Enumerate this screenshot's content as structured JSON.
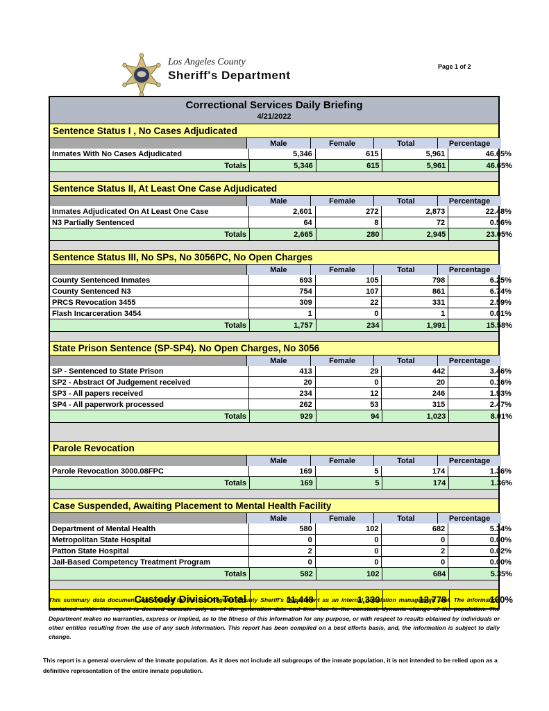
{
  "page": {
    "page_label": "Page 1 of 2",
    "logo": {
      "county": "Los Angeles County",
      "department": "Sheriff's Department"
    }
  },
  "title": {
    "heading": "Correctional Services Daily Briefing",
    "date": "4/21/2022"
  },
  "columns": [
    "Male",
    "Female",
    "Total",
    "Percentage"
  ],
  "totals_label": "Totals",
  "sections": [
    {
      "title": "Sentence Status I , No Cases Adjudicated",
      "rows": [
        {
          "label": "Inmates With No Cases Adjudicated",
          "male": "5,346",
          "female": "615",
          "total": "5,961",
          "percentage": "46.65%"
        }
      ],
      "totals": {
        "male": "5,346",
        "female": "615",
        "total": "5,961",
        "percentage": "46.65%"
      }
    },
    {
      "title": "Sentence Status II, At Least One Case Adjudicated",
      "rows": [
        {
          "label": "Inmates Adjudicated On At Least One Case",
          "male": "2,601",
          "female": "272",
          "total": "2,873",
          "percentage": "22.48%"
        },
        {
          "label": "N3 Partially Sentenced",
          "male": "64",
          "female": "8",
          "total": "72",
          "percentage": "0.56%"
        }
      ],
      "totals": {
        "male": "2,665",
        "female": "280",
        "total": "2,945",
        "percentage": "23.05%"
      }
    },
    {
      "title": "Sentence Status III, No SPs, No 3056PC, No Open Charges",
      "rows": [
        {
          "label": "County Sentenced Inmates",
          "male": "693",
          "female": "105",
          "total": "798",
          "percentage": "6.25%"
        },
        {
          "label": "County Sentenced N3",
          "male": "754",
          "female": "107",
          "total": "861",
          "percentage": "6.74%"
        },
        {
          "label": "PRCS Revocation 3455",
          "male": "309",
          "female": "22",
          "total": "331",
          "percentage": "2.59%"
        },
        {
          "label": "Flash Incarceration 3454",
          "male": "1",
          "female": "0",
          "total": "1",
          "percentage": "0.01%"
        }
      ],
      "totals": {
        "male": "1,757",
        "female": "234",
        "total": "1,991",
        "percentage": "15.58%"
      }
    },
    {
      "title": "State Prison Sentence (SP-SP4). No Open Charges, No 3056",
      "rows": [
        {
          "label": "SP - Sentenced to State Prison",
          "male": "413",
          "female": "29",
          "total": "442",
          "percentage": "3.46%"
        },
        {
          "label": "SP2 - Abstract Of Judgement received",
          "male": "20",
          "female": "0",
          "total": "20",
          "percentage": "0.16%"
        },
        {
          "label": "SP3 - All papers received",
          "male": "234",
          "female": "12",
          "total": "246",
          "percentage": "1.93%"
        },
        {
          "label": "SP4 - All paperwork processed",
          "male": "262",
          "female": "53",
          "total": "315",
          "percentage": "2.47%"
        }
      ],
      "totals": {
        "male": "929",
        "female": "94",
        "total": "1,023",
        "percentage": "8.01%"
      }
    },
    {
      "title": "Parole Revocation",
      "rows": [
        {
          "label": "Parole Revocation 3000.08FPC",
          "male": "169",
          "female": "5",
          "total": "174",
          "percentage": "1.36%"
        }
      ],
      "totals": {
        "male": "169",
        "female": "5",
        "total": "174",
        "percentage": "1.36%"
      }
    },
    {
      "title": "Case Suspended, Awaiting Placement to Mental Health Facility",
      "rows": [
        {
          "label": "Department of Mental Health",
          "male": "580",
          "female": "102",
          "total": "682",
          "percentage": "5.34%"
        },
        {
          "label": "Metropolitan State Hospital",
          "male": "0",
          "female": "0",
          "total": "0",
          "percentage": "0.00%"
        },
        {
          "label": "Patton State Hospital",
          "male": "2",
          "female": "0",
          "total": "2",
          "percentage": "0.02%"
        },
        {
          "label": "Jail-Based Competency Treatment Program",
          "male": "0",
          "female": "0",
          "total": "0",
          "percentage": "0.00%"
        }
      ],
      "totals": {
        "male": "582",
        "female": "102",
        "total": "684",
        "percentage": "5.35%"
      }
    }
  ],
  "grand_total": {
    "label": "Custody Division Total",
    "male": "11,448",
    "female": "1,330",
    "total": "12,778",
    "percentage": "100%"
  },
  "footer": {
    "disclaimer": "This summary data document was created by the Los Angeles County Sheriff's Department as an internal population management tool.  The information contained within this report is deemed accurate only as of the generation date and time due to the constant, dynamic change of the population.  The Department makes no warranties, express or implied, as to the fitness of this information for any purpose, or with respect to results obtained by individuals or other entities resulting from the use of any such information.  This report has been compiled on a best efforts basis, and, the information is subject to daily change.",
    "note": "This report is a general overview of the inmate population.  As it does not include all subgroups of the inmate population, it is not intended to be relied upon as a definitive representation of the entire inmate population."
  },
  "colors": {
    "title_bar": "#b3bac6",
    "section_header": "#ffff9b",
    "column_header": "#ccd4e8",
    "column_header_stub": "#a8a8a8",
    "totals_row": "#cdf3cd",
    "grand_total_row": "#ffff00",
    "spacer": "#d9d9d9",
    "border": "#000000"
  }
}
